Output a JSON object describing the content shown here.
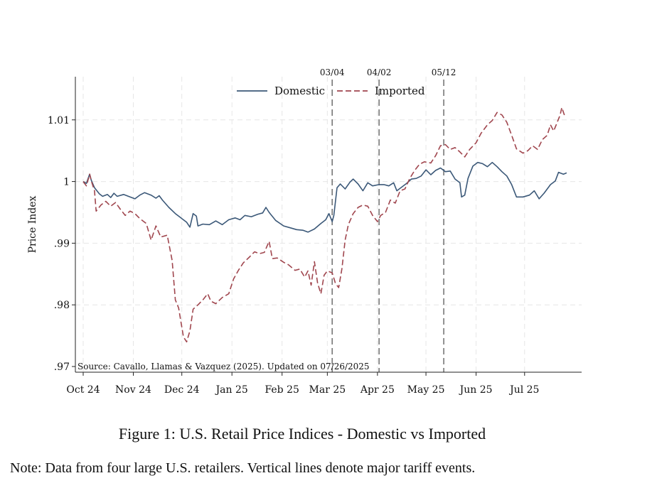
{
  "chart_data": {
    "type": "line",
    "title": "",
    "ylabel": "Price Index",
    "xlabel": "",
    "ylim": [
      0.97,
      1.017
    ],
    "y_ticks": [
      {
        "value": 0.97,
        "label": ".97"
      },
      {
        "value": 0.98,
        "label": ".98"
      },
      {
        "value": 0.99,
        "label": ".99"
      },
      {
        "value": 1.0,
        "label": "1"
      },
      {
        "value": 1.01,
        "label": "1.01"
      }
    ],
    "x_range": [
      "2024-10-01",
      "2025-07-31"
    ],
    "x_ticks": [
      {
        "date": "2024-10-01",
        "label": "Oct 24"
      },
      {
        "date": "2024-11-01",
        "label": "Nov 24"
      },
      {
        "date": "2024-12-01",
        "label": "Dec 24"
      },
      {
        "date": "2025-01-01",
        "label": "Jan 25"
      },
      {
        "date": "2025-02-01",
        "label": "Feb 25"
      },
      {
        "date": "2025-03-01",
        "label": "Mar 25"
      },
      {
        "date": "2025-04-01",
        "label": "Apr 25"
      },
      {
        "date": "2025-05-01",
        "label": "May 25"
      },
      {
        "date": "2025-06-01",
        "label": "Jun 25"
      },
      {
        "date": "2025-07-01",
        "label": "Jul 25"
      }
    ],
    "grid": true,
    "legend_position": "top-center",
    "events": [
      {
        "date": "2025-03-04",
        "label": "03/04"
      },
      {
        "date": "2025-04-02",
        "label": "04/02"
      },
      {
        "date": "2025-05-12",
        "label": "05/12"
      }
    ],
    "annotation": "Source: Cavallo, Llamas & Vazquez (2025). Updated on 07/26/2025",
    "series": [
      {
        "name": "Domestic",
        "color": "#3b5878",
        "style": "solid",
        "points": [
          [
            "2024-10-01",
            1.0
          ],
          [
            "2024-10-03",
            0.9997
          ],
          [
            "2024-10-05",
            1.0012
          ],
          [
            "2024-10-06",
            1.0002
          ],
          [
            "2024-10-08",
            0.999
          ],
          [
            "2024-10-11",
            0.998
          ],
          [
            "2024-10-13",
            0.9976
          ],
          [
            "2024-10-16",
            0.9979
          ],
          [
            "2024-10-18",
            0.9974
          ],
          [
            "2024-10-20",
            0.9981
          ],
          [
            "2024-10-22",
            0.9976
          ],
          [
            "2024-10-26",
            0.9979
          ],
          [
            "2024-10-30",
            0.9975
          ],
          [
            "2024-11-02",
            0.9972
          ],
          [
            "2024-11-05",
            0.9978
          ],
          [
            "2024-11-08",
            0.9982
          ],
          [
            "2024-11-12",
            0.9978
          ],
          [
            "2024-11-15",
            0.9973
          ],
          [
            "2024-11-17",
            0.9977
          ],
          [
            "2024-11-19",
            0.997
          ],
          [
            "2024-11-23",
            0.9958
          ],
          [
            "2024-11-27",
            0.9948
          ],
          [
            "2024-12-01",
            0.994
          ],
          [
            "2024-12-04",
            0.9934
          ],
          [
            "2024-12-06",
            0.9926
          ],
          [
            "2024-12-08",
            0.9948
          ],
          [
            "2024-12-10",
            0.9944
          ],
          [
            "2024-12-11",
            0.9928
          ],
          [
            "2024-12-14",
            0.9931
          ],
          [
            "2024-12-18",
            0.993
          ],
          [
            "2024-12-22",
            0.9936
          ],
          [
            "2024-12-26",
            0.993
          ],
          [
            "2024-12-30",
            0.9938
          ],
          [
            "2025-01-03",
            0.9941
          ],
          [
            "2025-01-06",
            0.9938
          ],
          [
            "2025-01-09",
            0.9945
          ],
          [
            "2025-01-13",
            0.9943
          ],
          [
            "2025-01-17",
            0.9947
          ],
          [
            "2025-01-20",
            0.9949
          ],
          [
            "2025-01-22",
            0.9958
          ],
          [
            "2025-01-24",
            0.995
          ],
          [
            "2025-01-28",
            0.9937
          ],
          [
            "2025-02-02",
            0.9928
          ],
          [
            "2025-02-06",
            0.9925
          ],
          [
            "2025-02-10",
            0.9922
          ],
          [
            "2025-02-14",
            0.9921
          ],
          [
            "2025-02-17",
            0.9918
          ],
          [
            "2025-02-21",
            0.9923
          ],
          [
            "2025-02-25",
            0.9932
          ],
          [
            "2025-02-28",
            0.9938
          ],
          [
            "2025-03-02",
            0.9948
          ],
          [
            "2025-03-04",
            0.9935
          ],
          [
            "2025-03-05",
            0.9945
          ],
          [
            "2025-03-07",
            0.999
          ],
          [
            "2025-03-09",
            0.9996
          ],
          [
            "2025-03-12",
            0.9988
          ],
          [
            "2025-03-15",
            0.9999
          ],
          [
            "2025-03-17",
            1.0004
          ],
          [
            "2025-03-20",
            0.9996
          ],
          [
            "2025-03-23",
            0.9985
          ],
          [
            "2025-03-26",
            0.9998
          ],
          [
            "2025-03-29",
            0.9993
          ],
          [
            "2025-04-02",
            0.9995
          ],
          [
            "2025-04-05",
            0.9995
          ],
          [
            "2025-04-08",
            0.9993
          ],
          [
            "2025-04-11",
            0.9998
          ],
          [
            "2025-04-13",
            0.9985
          ],
          [
            "2025-04-16",
            0.9991
          ],
          [
            "2025-04-19",
            0.9997
          ],
          [
            "2025-04-22",
            1.0004
          ],
          [
            "2025-04-25",
            1.0005
          ],
          [
            "2025-04-28",
            1.0009
          ],
          [
            "2025-05-01",
            1.0019
          ],
          [
            "2025-05-04",
            1.0011
          ],
          [
            "2025-05-07",
            1.0018
          ],
          [
            "2025-05-10",
            1.0022
          ],
          [
            "2025-05-13",
            1.0016
          ],
          [
            "2025-05-16",
            1.0017
          ],
          [
            "2025-05-19",
            1.0004
          ],
          [
            "2025-05-22",
            0.9998
          ],
          [
            "2025-05-23",
            0.9975
          ],
          [
            "2025-05-25",
            0.9978
          ],
          [
            "2025-05-27",
            1.0005
          ],
          [
            "2025-05-30",
            1.0025
          ],
          [
            "2025-06-02",
            1.0031
          ],
          [
            "2025-06-05",
            1.0029
          ],
          [
            "2025-06-08",
            1.0024
          ],
          [
            "2025-06-11",
            1.0031
          ],
          [
            "2025-06-14",
            1.0024
          ],
          [
            "2025-06-17",
            1.0016
          ],
          [
            "2025-06-20",
            1.0009
          ],
          [
            "2025-06-23",
            0.9995
          ],
          [
            "2025-06-26",
            0.9975
          ],
          [
            "2025-06-30",
            0.9975
          ],
          [
            "2025-07-04",
            0.9978
          ],
          [
            "2025-07-07",
            0.9985
          ],
          [
            "2025-07-10",
            0.9972
          ],
          [
            "2025-07-13",
            0.9981
          ],
          [
            "2025-07-17",
            0.9995
          ],
          [
            "2025-07-20",
            1.0001
          ],
          [
            "2025-07-22",
            1.0015
          ],
          [
            "2025-07-25",
            1.0012
          ],
          [
            "2025-07-27",
            1.0014
          ]
        ]
      },
      {
        "name": "Imported",
        "color": "#a0464e",
        "style": "dashed",
        "points": [
          [
            "2024-10-01",
            1.0
          ],
          [
            "2024-10-03",
            0.9993
          ],
          [
            "2024-10-05",
            1.0012
          ],
          [
            "2024-10-06",
            1.0001
          ],
          [
            "2024-10-08",
            0.9985
          ],
          [
            "2024-10-09",
            0.9952
          ],
          [
            "2024-10-12",
            0.9962
          ],
          [
            "2024-10-15",
            0.9968
          ],
          [
            "2024-10-18",
            0.996
          ],
          [
            "2024-10-21",
            0.9966
          ],
          [
            "2024-10-24",
            0.9955
          ],
          [
            "2024-10-27",
            0.9945
          ],
          [
            "2024-10-30",
            0.9952
          ],
          [
            "2024-11-02",
            0.9948
          ],
          [
            "2024-11-05",
            0.994
          ],
          [
            "2024-11-09",
            0.9932
          ],
          [
            "2024-11-12",
            0.9905
          ],
          [
            "2024-11-15",
            0.9928
          ],
          [
            "2024-11-18",
            0.991
          ],
          [
            "2024-11-22",
            0.9913
          ],
          [
            "2024-11-25",
            0.9872
          ],
          [
            "2024-11-27",
            0.9808
          ],
          [
            "2024-11-29",
            0.9795
          ],
          [
            "2024-12-02",
            0.9748
          ],
          [
            "2024-12-04",
            0.974
          ],
          [
            "2024-12-06",
            0.9758
          ],
          [
            "2024-12-08",
            0.9793
          ],
          [
            "2024-12-11",
            0.98
          ],
          [
            "2024-12-14",
            0.9808
          ],
          [
            "2024-12-17",
            0.9818
          ],
          [
            "2024-12-19",
            0.9806
          ],
          [
            "2024-12-22",
            0.9802
          ],
          [
            "2024-12-26",
            0.9812
          ],
          [
            "2024-12-30",
            0.9818
          ],
          [
            "2025-01-02",
            0.9842
          ],
          [
            "2025-01-05",
            0.9856
          ],
          [
            "2025-01-08",
            0.9868
          ],
          [
            "2025-01-12",
            0.9878
          ],
          [
            "2025-01-15",
            0.9886
          ],
          [
            "2025-01-18",
            0.9883
          ],
          [
            "2025-01-21",
            0.9885
          ],
          [
            "2025-01-24",
            0.9903
          ],
          [
            "2025-01-26",
            0.9875
          ],
          [
            "2025-01-29",
            0.9876
          ],
          [
            "2025-02-02",
            0.9869
          ],
          [
            "2025-02-05",
            0.9865
          ],
          [
            "2025-02-09",
            0.9856
          ],
          [
            "2025-02-12",
            0.9858
          ],
          [
            "2025-02-15",
            0.9845
          ],
          [
            "2025-02-17",
            0.9855
          ],
          [
            "2025-02-19",
            0.9832
          ],
          [
            "2025-02-21",
            0.987
          ],
          [
            "2025-02-23",
            0.9835
          ],
          [
            "2025-02-25",
            0.9818
          ],
          [
            "2025-02-27",
            0.9848
          ],
          [
            "2025-03-01",
            0.9855
          ],
          [
            "2025-03-04",
            0.9852
          ],
          [
            "2025-03-06",
            0.9835
          ],
          [
            "2025-03-08",
            0.9828
          ],
          [
            "2025-03-10",
            0.9858
          ],
          [
            "2025-03-12",
            0.9905
          ],
          [
            "2025-03-14",
            0.993
          ],
          [
            "2025-03-17",
            0.9948
          ],
          [
            "2025-03-20",
            0.9958
          ],
          [
            "2025-03-23",
            0.9962
          ],
          [
            "2025-03-26",
            0.996
          ],
          [
            "2025-03-29",
            0.9945
          ],
          [
            "2025-04-01",
            0.9935
          ],
          [
            "2025-04-03",
            0.9945
          ],
          [
            "2025-04-06",
            0.995
          ],
          [
            "2025-04-09",
            0.997
          ],
          [
            "2025-04-12",
            0.9965
          ],
          [
            "2025-04-15",
            0.9985
          ],
          [
            "2025-04-18",
            0.9988
          ],
          [
            "2025-04-21",
            1.0005
          ],
          [
            "2025-04-24",
            1.0018
          ],
          [
            "2025-04-27",
            1.0028
          ],
          [
            "2025-04-30",
            1.0032
          ],
          [
            "2025-05-04",
            1.003
          ],
          [
            "2025-05-07",
            1.0042
          ],
          [
            "2025-05-10",
            1.0058
          ],
          [
            "2025-05-13",
            1.006
          ],
          [
            "2025-05-16",
            1.0052
          ],
          [
            "2025-05-19",
            1.0055
          ],
          [
            "2025-05-22",
            1.0048
          ],
          [
            "2025-05-25",
            1.004
          ],
          [
            "2025-05-28",
            1.0052
          ],
          [
            "2025-06-01",
            1.0063
          ],
          [
            "2025-06-04",
            1.0078
          ],
          [
            "2025-06-08",
            1.0092
          ],
          [
            "2025-06-11",
            1.0099
          ],
          [
            "2025-06-14",
            1.0112
          ],
          [
            "2025-06-17",
            1.0108
          ],
          [
            "2025-06-20",
            1.0096
          ],
          [
            "2025-06-23",
            1.0075
          ],
          [
            "2025-06-26",
            1.0053
          ],
          [
            "2025-06-30",
            1.0046
          ],
          [
            "2025-07-03",
            1.005
          ],
          [
            "2025-07-06",
            1.0058
          ],
          [
            "2025-07-09",
            1.0052
          ],
          [
            "2025-07-12",
            1.0068
          ],
          [
            "2025-07-15",
            1.0075
          ],
          [
            "2025-07-17",
            1.0092
          ],
          [
            "2025-07-19",
            1.0082
          ],
          [
            "2025-07-21",
            1.0095
          ],
          [
            "2025-07-23",
            1.0108
          ],
          [
            "2025-07-24",
            1.012
          ],
          [
            "2025-07-26",
            1.0105
          ]
        ]
      }
    ]
  },
  "figure": {
    "caption": "Figure 1: U.S. Retail Price Indices - Domestic vs Imported",
    "note": "Note: Data from four large U.S. retailers. Vertical lines denote major tariff events."
  }
}
